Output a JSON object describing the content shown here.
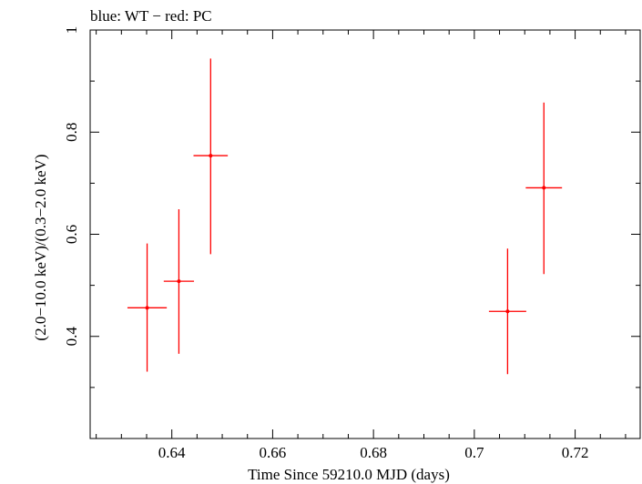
{
  "header": {
    "title": "blue: WT − red: PC"
  },
  "chart_data": {
    "type": "scatter",
    "title": "blue: WT − red: PC",
    "xlabel": "Time Since 59210.0 MJD (days)",
    "ylabel": "(2.0−10.0 keV)/(0.3−2.0 keV)",
    "xlim": [
      0.6238,
      0.7329
    ],
    "ylim": [
      0.2,
      1.0
    ],
    "x_ticks": [
      0.64,
      0.66,
      0.68,
      0.7,
      0.72
    ],
    "x_tick_labels": [
      "0.64",
      "0.66",
      "0.68",
      "0.7",
      "0.72"
    ],
    "y_ticks": [
      0.4,
      0.6,
      0.8,
      1.0
    ],
    "y_tick_labels": [
      "0.4",
      "0.6",
      "0.8",
      "1"
    ],
    "grid": false,
    "series": [
      {
        "name": "PC",
        "color": "#ff0000",
        "points": [
          {
            "x": 0.6351,
            "y": 0.456,
            "xerr": 0.0039,
            "ylo": 0.331,
            "yhi": 0.582
          },
          {
            "x": 0.6414,
            "y": 0.508,
            "xerr": 0.003,
            "ylo": 0.366,
            "yhi": 0.649
          },
          {
            "x": 0.6477,
            "y": 0.754,
            "xerr": 0.0034,
            "ylo": 0.561,
            "yhi": 0.944
          },
          {
            "x": 0.7066,
            "y": 0.449,
            "xerr": 0.0037,
            "ylo": 0.326,
            "yhi": 0.572
          },
          {
            "x": 0.7138,
            "y": 0.691,
            "xerr": 0.0036,
            "ylo": 0.522,
            "yhi": 0.858
          }
        ]
      }
    ]
  }
}
